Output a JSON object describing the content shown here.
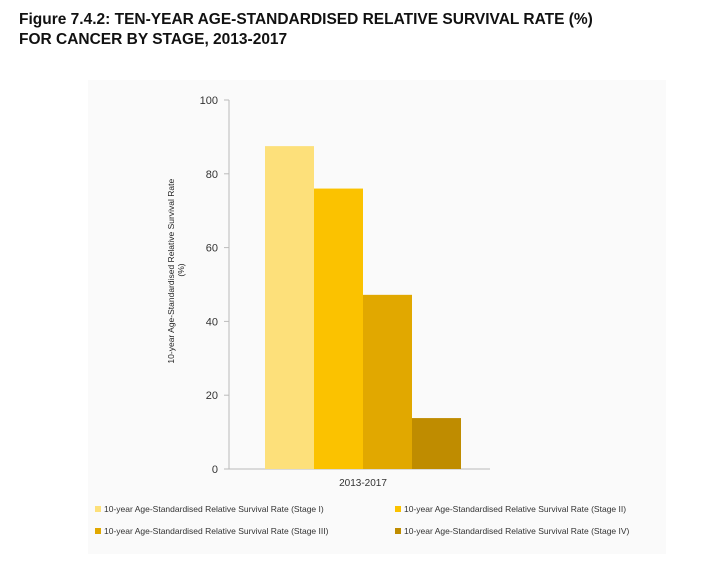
{
  "title_line1": "Figure 7.4.2: TEN-YEAR AGE-STANDARDISED RELATIVE SURVIVAL RATE (%)",
  "title_line2": "FOR CANCER BY STAGE, 2013-2017",
  "chart_data": {
    "type": "bar",
    "categories": [
      "2013-2017"
    ],
    "series": [
      {
        "name": "10-year Age-Standardised Relative Survival Rate (Stage I)",
        "values": [
          87.5
        ],
        "color": "#fde07a"
      },
      {
        "name": "10-year Age-Standardised Relative Survival Rate (Stage II)",
        "values": [
          76
        ],
        "color": "#fbc200"
      },
      {
        "name": "10-year Age-Standardised Relative Survival Rate (Stage III)",
        "values": [
          47.2
        ],
        "color": "#e1a800"
      },
      {
        "name": "10-year Age-Standardised Relative Survival Rate (Stage IV)",
        "values": [
          13.8
        ],
        "color": "#bf8c00"
      }
    ],
    "ylabel_line1": "10-year  Age-Standardised Relative Survival Rate",
    "ylabel_line2": "(%)",
    "ylim": [
      0,
      100
    ],
    "yticks": [
      "0",
      "20",
      "40",
      "60",
      "80",
      "100"
    ],
    "grid": false,
    "legend_position": "bottom"
  }
}
